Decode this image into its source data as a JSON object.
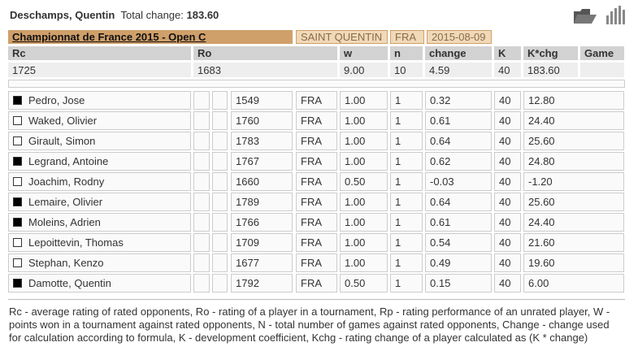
{
  "header": {
    "name": "Deschamps, Quentin",
    "total_change_label": "Total change:",
    "total_change": "183.60"
  },
  "tournament": {
    "name": "Championnat de France 2015 - Open C",
    "city": "SAINT QUENTIN",
    "country": "FRA",
    "date": "2015-08-09"
  },
  "summary": {
    "columns": [
      "Rc",
      "Ro",
      "w",
      "n",
      "change",
      "K",
      "K*chg",
      "Game"
    ],
    "values": [
      "1725",
      "1683",
      "9.00",
      "10",
      "4.59",
      "40",
      "183.60"
    ]
  },
  "games": [
    {
      "color": "black",
      "name": "Pedro, Jose",
      "rating": "1549",
      "federation": "FRA",
      "result": "1.00",
      "n": "1",
      "change": "0.32",
      "k": "40",
      "kchg": "12.80"
    },
    {
      "color": "white",
      "name": "Waked, Olivier",
      "rating": "1760",
      "federation": "FRA",
      "result": "1.00",
      "n": "1",
      "change": "0.61",
      "k": "40",
      "kchg": "24.40"
    },
    {
      "color": "white",
      "name": "Girault, Simon",
      "rating": "1783",
      "federation": "FRA",
      "result": "1.00",
      "n": "1",
      "change": "0.64",
      "k": "40",
      "kchg": "25.60"
    },
    {
      "color": "black",
      "name": "Legrand, Antoine",
      "rating": "1767",
      "federation": "FRA",
      "result": "1.00",
      "n": "1",
      "change": "0.62",
      "k": "40",
      "kchg": "24.80"
    },
    {
      "color": "white",
      "name": "Joachim, Rodny",
      "rating": "1660",
      "federation": "FRA",
      "result": "0.50",
      "n": "1",
      "change": "-0.03",
      "k": "40",
      "kchg": "-1.20"
    },
    {
      "color": "black",
      "name": "Lemaire, Olivier",
      "rating": "1789",
      "federation": "FRA",
      "result": "1.00",
      "n": "1",
      "change": "0.64",
      "k": "40",
      "kchg": "25.60"
    },
    {
      "color": "black",
      "name": "Moleins, Adrien",
      "rating": "1766",
      "federation": "FRA",
      "result": "1.00",
      "n": "1",
      "change": "0.61",
      "k": "40",
      "kchg": "24.40"
    },
    {
      "color": "white",
      "name": "Lepoittevin, Thomas",
      "rating": "1709",
      "federation": "FRA",
      "result": "1.00",
      "n": "1",
      "change": "0.54",
      "k": "40",
      "kchg": "21.60"
    },
    {
      "color": "white",
      "name": "Stephan, Kenzo",
      "rating": "1677",
      "federation": "FRA",
      "result": "1.00",
      "n": "1",
      "change": "0.49",
      "k": "40",
      "kchg": "19.60"
    },
    {
      "color": "black",
      "name": "Damotte, Quentin",
      "rating": "1792",
      "federation": "FRA",
      "result": "0.50",
      "n": "1",
      "change": "0.15",
      "k": "40",
      "kchg": "6.00"
    }
  ],
  "legend": "Rc - average rating of rated opponents, Ro - rating of a player in a tournament, Rp - rating performance of an unrated player, W - points won in a tournament against rated opponents, N - total number of games against rated opponents, Change - change used for calculation according to formula, K - development coefficient, Kchg - rating change of a player calculated as (K * change)"
}
